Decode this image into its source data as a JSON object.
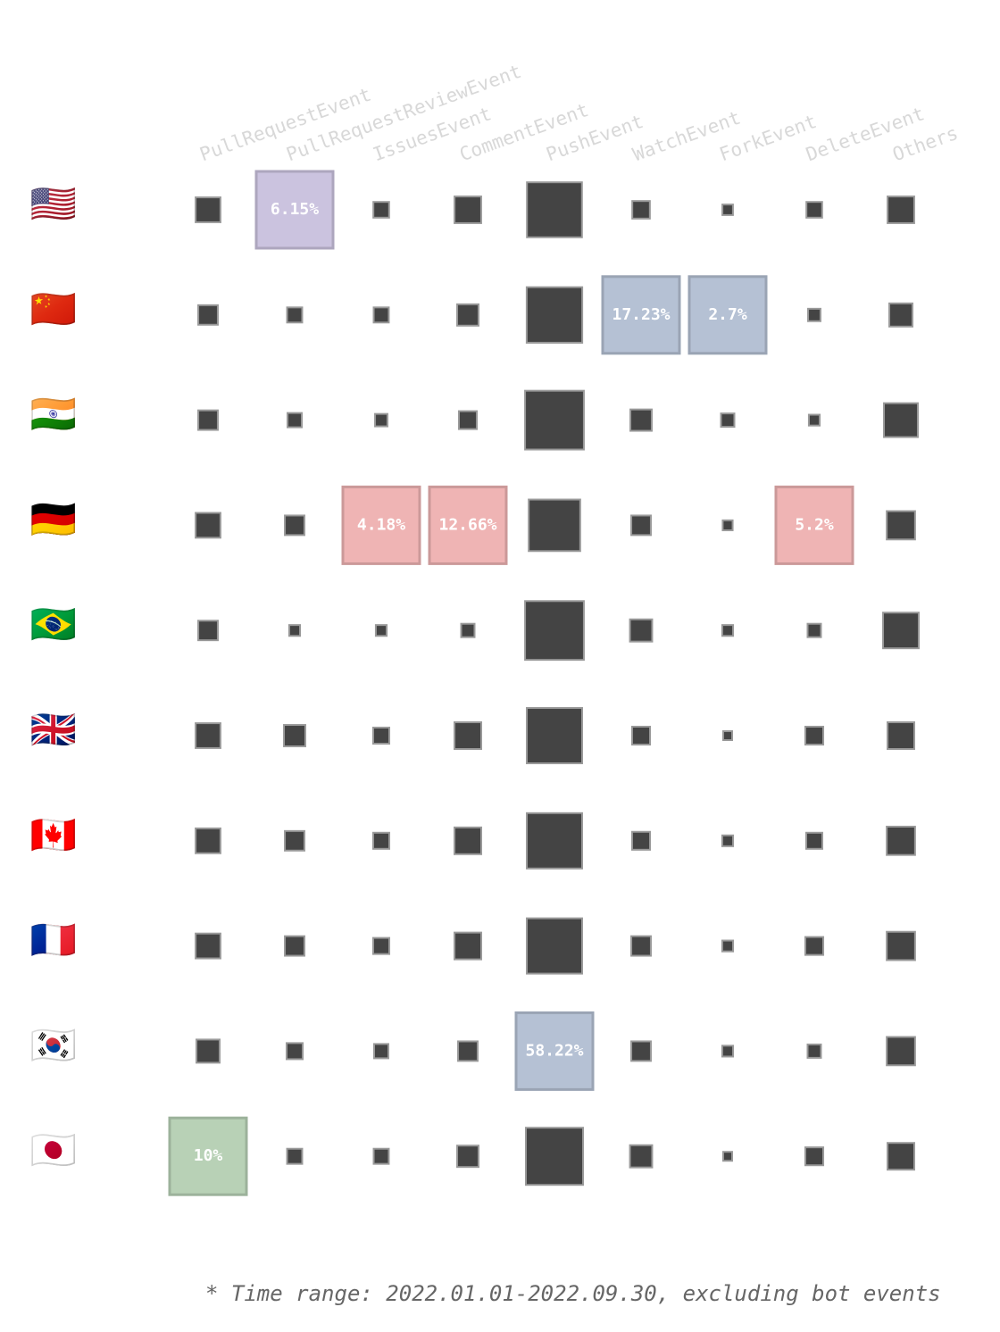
{
  "chart_data": {
    "type": "square-matrix",
    "categories": [
      "PullRequestEvent",
      "PullRequestReviewEvent",
      "IssuesEvent",
      "CommentEvent",
      "PushEvent",
      "WatchEvent",
      "ForkEvent",
      "DeleteEvent",
      "Others"
    ],
    "series": [
      {
        "name": "🇺🇸",
        "highlight_color": "#cbc3df",
        "values": [
          10,
          6.15,
          4,
          11.5,
          49,
          5,
          1.8,
          4,
          11.5
        ],
        "value_labels": [
          null,
          "6.15%",
          null,
          null,
          null,
          null,
          null,
          null,
          null
        ]
      },
      {
        "name": "🇨🇳",
        "highlight_color": "#b5c1d4",
        "values": [
          6.2,
          3.7,
          3.7,
          7.4,
          50,
          17.23,
          2.7,
          2.5,
          8.7
        ],
        "value_labels": [
          null,
          null,
          null,
          null,
          null,
          "17.23%",
          "2.7%",
          null,
          null
        ]
      },
      {
        "name": "🇮🇳",
        "values": [
          6.2,
          3.3,
          2.5,
          5.2,
          56,
          7.4,
          2.9,
          1.9,
          18.6
        ]
      },
      {
        "name": "🇩🇪",
        "highlight_color": "#efb4b4",
        "values": [
          10,
          6.2,
          4.18,
          12.66,
          43,
          6.2,
          1.6,
          5.2,
          13
        ],
        "value_labels": [
          null,
          null,
          "4.18%",
          "12.66%",
          null,
          null,
          null,
          "5.2%",
          null
        ]
      },
      {
        "name": "🇧🇷",
        "values": [
          6.2,
          1.9,
          1.9,
          2.9,
          56,
          8,
          1.9,
          2.9,
          20.6
        ]
      },
      {
        "name": "🇬🇧",
        "values": [
          10,
          7.4,
          4.2,
          11.6,
          49.6,
          5.2,
          1.3,
          5.2,
          11.6
        ]
      },
      {
        "name": "🇨🇦",
        "values": [
          10,
          6.2,
          4.2,
          11.6,
          49.6,
          5.2,
          1.9,
          4.2,
          13
        ]
      },
      {
        "name": "🇫🇷",
        "values": [
          10,
          6.2,
          4.2,
          11.6,
          49.6,
          6.2,
          1.9,
          5.2,
          13
        ]
      },
      {
        "name": "🇰🇷",
        "highlight_color": "#b5c1d4",
        "values": [
          8.7,
          4.2,
          3.3,
          6.2,
          58.22,
          6.2,
          1.9,
          2.9,
          13
        ],
        "value_labels": [
          null,
          null,
          null,
          null,
          "58.22%",
          null,
          null,
          null,
          null
        ]
      },
      {
        "name": "🇯🇵",
        "highlight_color": "#b8d1b6",
        "values": [
          10,
          3.7,
          3.7,
          7.4,
          52.9,
          8,
          1.3,
          5.2,
          11.6
        ],
        "value_labels": [
          "10%",
          null,
          null,
          null,
          null,
          null,
          null,
          null,
          null
        ]
      }
    ],
    "color": "#444444",
    "note": "* Time range: 2022.01.01-2022.09.30, excluding bot events"
  }
}
